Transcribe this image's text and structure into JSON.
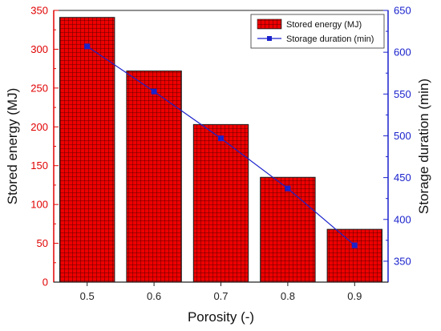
{
  "chart_data": {
    "type": "bar",
    "categories": [
      "0.5",
      "0.6",
      "0.7",
      "0.8",
      "0.9"
    ],
    "xlabel": "Porosity (-)",
    "ylabel": "Stored energy (MJ)",
    "y2label": "Storage duration (min)",
    "ylim": [
      0,
      350
    ],
    "y2lim": [
      325,
      650
    ],
    "yticks": [
      "0",
      "50",
      "100",
      "150",
      "200",
      "250",
      "300",
      "350"
    ],
    "y2ticks": [
      "350",
      "400",
      "450",
      "500",
      "550",
      "600",
      "650"
    ],
    "series": [
      {
        "name": "Stored energy (MJ)",
        "type": "bar",
        "axis": "left",
        "color": "#ee0000",
        "values": [
          341,
          272,
          203,
          135,
          68
        ]
      },
      {
        "name": "Storage duration (min)",
        "type": "line",
        "axis": "right",
        "color": "#1a22cc",
        "marker": "square",
        "values": [
          607,
          553,
          497,
          437,
          369
        ]
      }
    ],
    "legend_position": "top-right",
    "grid": false,
    "bar_pattern": "crosshatch"
  }
}
